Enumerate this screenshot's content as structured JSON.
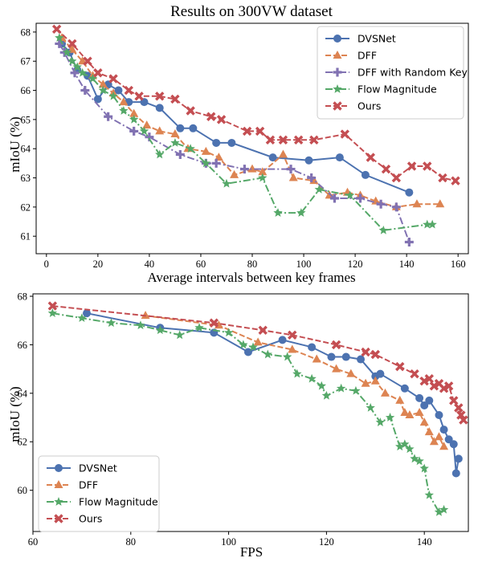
{
  "chart_data": [
    {
      "type": "line",
      "title": "Results on 300VW dataset",
      "xlabel": "Average intervals between key frames",
      "ylabel": "mIoU (%)",
      "xlim": [
        -4,
        164
      ],
      "ylim": [
        60.4,
        68.3
      ],
      "xticks": [
        0,
        20,
        40,
        60,
        80,
        100,
        120,
        140,
        160
      ],
      "yticks": [
        61,
        62,
        63,
        64,
        65,
        66,
        67,
        68
      ],
      "grid": false,
      "legend": "top-right",
      "series": [
        {
          "name": "DVSNet",
          "color": "#4c72b0",
          "marker": "circle",
          "dash": "solid",
          "points": [
            [
              6,
              67.6
            ],
            [
              9,
              67.3
            ],
            [
              12,
              66.7
            ],
            [
              16,
              66.5
            ],
            [
              20,
              65.7
            ],
            [
              24,
              66.2
            ],
            [
              28,
              66.0
            ],
            [
              32,
              65.6
            ],
            [
              38,
              65.6
            ],
            [
              44,
              65.4
            ],
            [
              52,
              64.7
            ],
            [
              57,
              64.7
            ],
            [
              66,
              64.2
            ],
            [
              72,
              64.2
            ],
            [
              88,
              63.7
            ],
            [
              102,
              63.6
            ],
            [
              114,
              63.7
            ],
            [
              124,
              63.1
            ],
            [
              141,
              62.5
            ]
          ]
        },
        {
          "name": "DFF",
          "color": "#dd8452",
          "marker": "triangle",
          "dash": "dashed",
          "points": [
            [
              6,
              67.8
            ],
            [
              10,
              67.4
            ],
            [
              14,
              67.0
            ],
            [
              18,
              66.5
            ],
            [
              22,
              66.2
            ],
            [
              26,
              65.9
            ],
            [
              30,
              65.6
            ],
            [
              34,
              65.2
            ],
            [
              39,
              64.8
            ],
            [
              44,
              64.6
            ],
            [
              50,
              64.5
            ],
            [
              55,
              64.0
            ],
            [
              62,
              63.9
            ],
            [
              67,
              63.7
            ],
            [
              73,
              63.1
            ],
            [
              80,
              63.3
            ],
            [
              84,
              63.2
            ],
            [
              92,
              63.8
            ],
            [
              96,
              63.0
            ],
            [
              104,
              62.9
            ],
            [
              110,
              62.4
            ],
            [
              117,
              62.5
            ],
            [
              122,
              62.4
            ],
            [
              128,
              62.2
            ],
            [
              136,
              62.0
            ],
            [
              144,
              62.1
            ],
            [
              153,
              62.1
            ]
          ]
        },
        {
          "name": "DFF with Random Key",
          "color": "#8172b2",
          "marker": "plus",
          "dash": "dashdot",
          "points": [
            [
              5,
              67.6
            ],
            [
              7,
              67.3
            ],
            [
              11,
              66.6
            ],
            [
              15,
              66.0
            ],
            [
              24,
              65.1
            ],
            [
              34,
              64.6
            ],
            [
              40,
              64.4
            ],
            [
              52,
              63.8
            ],
            [
              62,
              63.5
            ],
            [
              66,
              63.5
            ],
            [
              77,
              63.3
            ],
            [
              95,
              63.3
            ],
            [
              103,
              63.0
            ],
            [
              112,
              62.3
            ],
            [
              122,
              62.3
            ],
            [
              130,
              62.1
            ],
            [
              136,
              62.0
            ],
            [
              141,
              60.8
            ]
          ]
        },
        {
          "name": "Flow Magnitude",
          "color": "#55a868",
          "marker": "star",
          "dash": "dashdot",
          "points": [
            [
              5,
              67.8
            ],
            [
              8,
              67.3
            ],
            [
              10,
              67.0
            ],
            [
              12,
              66.8
            ],
            [
              14,
              66.6
            ],
            [
              18,
              66.4
            ],
            [
              22,
              66.0
            ],
            [
              26,
              65.8
            ],
            [
              30,
              65.3
            ],
            [
              34,
              65.0
            ],
            [
              38,
              64.6
            ],
            [
              44,
              63.8
            ],
            [
              50,
              64.2
            ],
            [
              56,
              64.0
            ],
            [
              62,
              63.5
            ],
            [
              70,
              62.8
            ],
            [
              84,
              63.0
            ],
            [
              90,
              61.8
            ],
            [
              99,
              61.8
            ],
            [
              106,
              62.6
            ],
            [
              118,
              62.4
            ],
            [
              131,
              61.2
            ],
            [
              148,
              61.4
            ],
            [
              150,
              61.4
            ]
          ]
        },
        {
          "name": "Ours",
          "color": "#c44e52",
          "marker": "x",
          "dash": "dashed",
          "points": [
            [
              4,
              68.1
            ],
            [
              10,
              67.6
            ],
            [
              16,
              67.0
            ],
            [
              20,
              66.6
            ],
            [
              26,
              66.4
            ],
            [
              32,
              66.0
            ],
            [
              36,
              65.8
            ],
            [
              44,
              65.8
            ],
            [
              50,
              65.7
            ],
            [
              56,
              65.3
            ],
            [
              64,
              65.1
            ],
            [
              68,
              65.0
            ],
            [
              78,
              64.6
            ],
            [
              83,
              64.6
            ],
            [
              87,
              64.3
            ],
            [
              92,
              64.3
            ],
            [
              98,
              64.3
            ],
            [
              104,
              64.3
            ],
            [
              116,
              64.5
            ],
            [
              126,
              63.7
            ],
            [
              132,
              63.3
            ],
            [
              136,
              63.0
            ],
            [
              142,
              63.4
            ],
            [
              148,
              63.4
            ],
            [
              154,
              63.0
            ],
            [
              159,
              62.9
            ]
          ]
        }
      ]
    },
    {
      "type": "line",
      "title": "",
      "xlabel": "FPS",
      "ylabel": "mIoU (%)",
      "xlim": [
        60,
        149
      ],
      "ylim": [
        58.3,
        68.1
      ],
      "xticks": [
        60,
        80,
        100,
        120,
        140
      ],
      "yticks": [
        60,
        62,
        64,
        66,
        68
      ],
      "grid": false,
      "legend": "bottom-left",
      "series": [
        {
          "name": "DVSNet",
          "color": "#4c72b0",
          "marker": "circle",
          "dash": "solid",
          "points": [
            [
              71,
              67.3
            ],
            [
              86,
              66.7
            ],
            [
              97,
              66.5
            ],
            [
              104,
              65.7
            ],
            [
              111,
              66.2
            ],
            [
              117,
              65.9
            ],
            [
              121,
              65.5
            ],
            [
              124,
              65.5
            ],
            [
              127,
              65.4
            ],
            [
              130,
              64.7
            ],
            [
              131,
              64.8
            ],
            [
              136,
              64.2
            ],
            [
              139,
              63.8
            ],
            [
              140,
              63.5
            ],
            [
              141,
              63.7
            ],
            [
              143,
              63.1
            ],
            [
              144,
              62.5
            ],
            [
              145,
              62.1
            ],
            [
              146,
              61.9
            ],
            [
              146.5,
              60.7
            ],
            [
              147,
              61.3
            ]
          ]
        },
        {
          "name": "DFF",
          "color": "#dd8452",
          "marker": "triangle",
          "dash": "dashed",
          "points": [
            [
              83,
              67.2
            ],
            [
              98,
              66.8
            ],
            [
              106,
              66.1
            ],
            [
              113,
              65.8
            ],
            [
              118,
              65.4
            ],
            [
              122,
              65.0
            ],
            [
              125,
              64.8
            ],
            [
              128,
              64.4
            ],
            [
              130,
              64.5
            ],
            [
              132,
              64.0
            ],
            [
              135,
              63.7
            ],
            [
              136,
              63.2
            ],
            [
              137,
              63.1
            ],
            [
              139,
              63.2
            ],
            [
              140,
              62.8
            ],
            [
              141,
              62.4
            ],
            [
              142,
              62.0
            ],
            [
              143,
              62.2
            ],
            [
              144,
              61.8
            ]
          ]
        },
        {
          "name": "Flow Magnitude",
          "color": "#55a868",
          "marker": "star",
          "dash": "dashdot",
          "points": [
            [
              64,
              67.3
            ],
            [
              70,
              67.1
            ],
            [
              76,
              66.9
            ],
            [
              82,
              66.8
            ],
            [
              86,
              66.6
            ],
            [
              90,
              66.4
            ],
            [
              94,
              66.7
            ],
            [
              100,
              66.5
            ],
            [
              103,
              66.0
            ],
            [
              105,
              65.9
            ],
            [
              108,
              65.6
            ],
            [
              112,
              65.5
            ],
            [
              114,
              64.8
            ],
            [
              117,
              64.6
            ],
            [
              119,
              64.3
            ],
            [
              120,
              63.9
            ],
            [
              123,
              64.2
            ],
            [
              126,
              64.1
            ],
            [
              129,
              63.4
            ],
            [
              131,
              62.8
            ],
            [
              133,
              63.0
            ],
            [
              135,
              61.8
            ],
            [
              136,
              61.9
            ],
            [
              137,
              61.7
            ],
            [
              138,
              61.3
            ],
            [
              139,
              61.2
            ],
            [
              140,
              60.9
            ],
            [
              141,
              59.8
            ],
            [
              143,
              59.1
            ],
            [
              144,
              59.2
            ]
          ]
        },
        {
          "name": "Ours",
          "color": "#c44e52",
          "marker": "x",
          "dash": "dashed",
          "points": [
            [
              64,
              67.6
            ],
            [
              97,
              66.9
            ],
            [
              107,
              66.6
            ],
            [
              113,
              66.4
            ],
            [
              122,
              66.0
            ],
            [
              128,
              65.7
            ],
            [
              130,
              65.6
            ],
            [
              135,
              65.1
            ],
            [
              138,
              64.8
            ],
            [
              140,
              64.5
            ],
            [
              141,
              64.6
            ],
            [
              142,
              64.3
            ],
            [
              143,
              64.4
            ],
            [
              144,
              64.2
            ],
            [
              145,
              64.3
            ],
            [
              146,
              63.7
            ],
            [
              147,
              63.4
            ],
            [
              147.5,
              63.1
            ],
            [
              148,
              62.9
            ]
          ]
        }
      ]
    }
  ]
}
